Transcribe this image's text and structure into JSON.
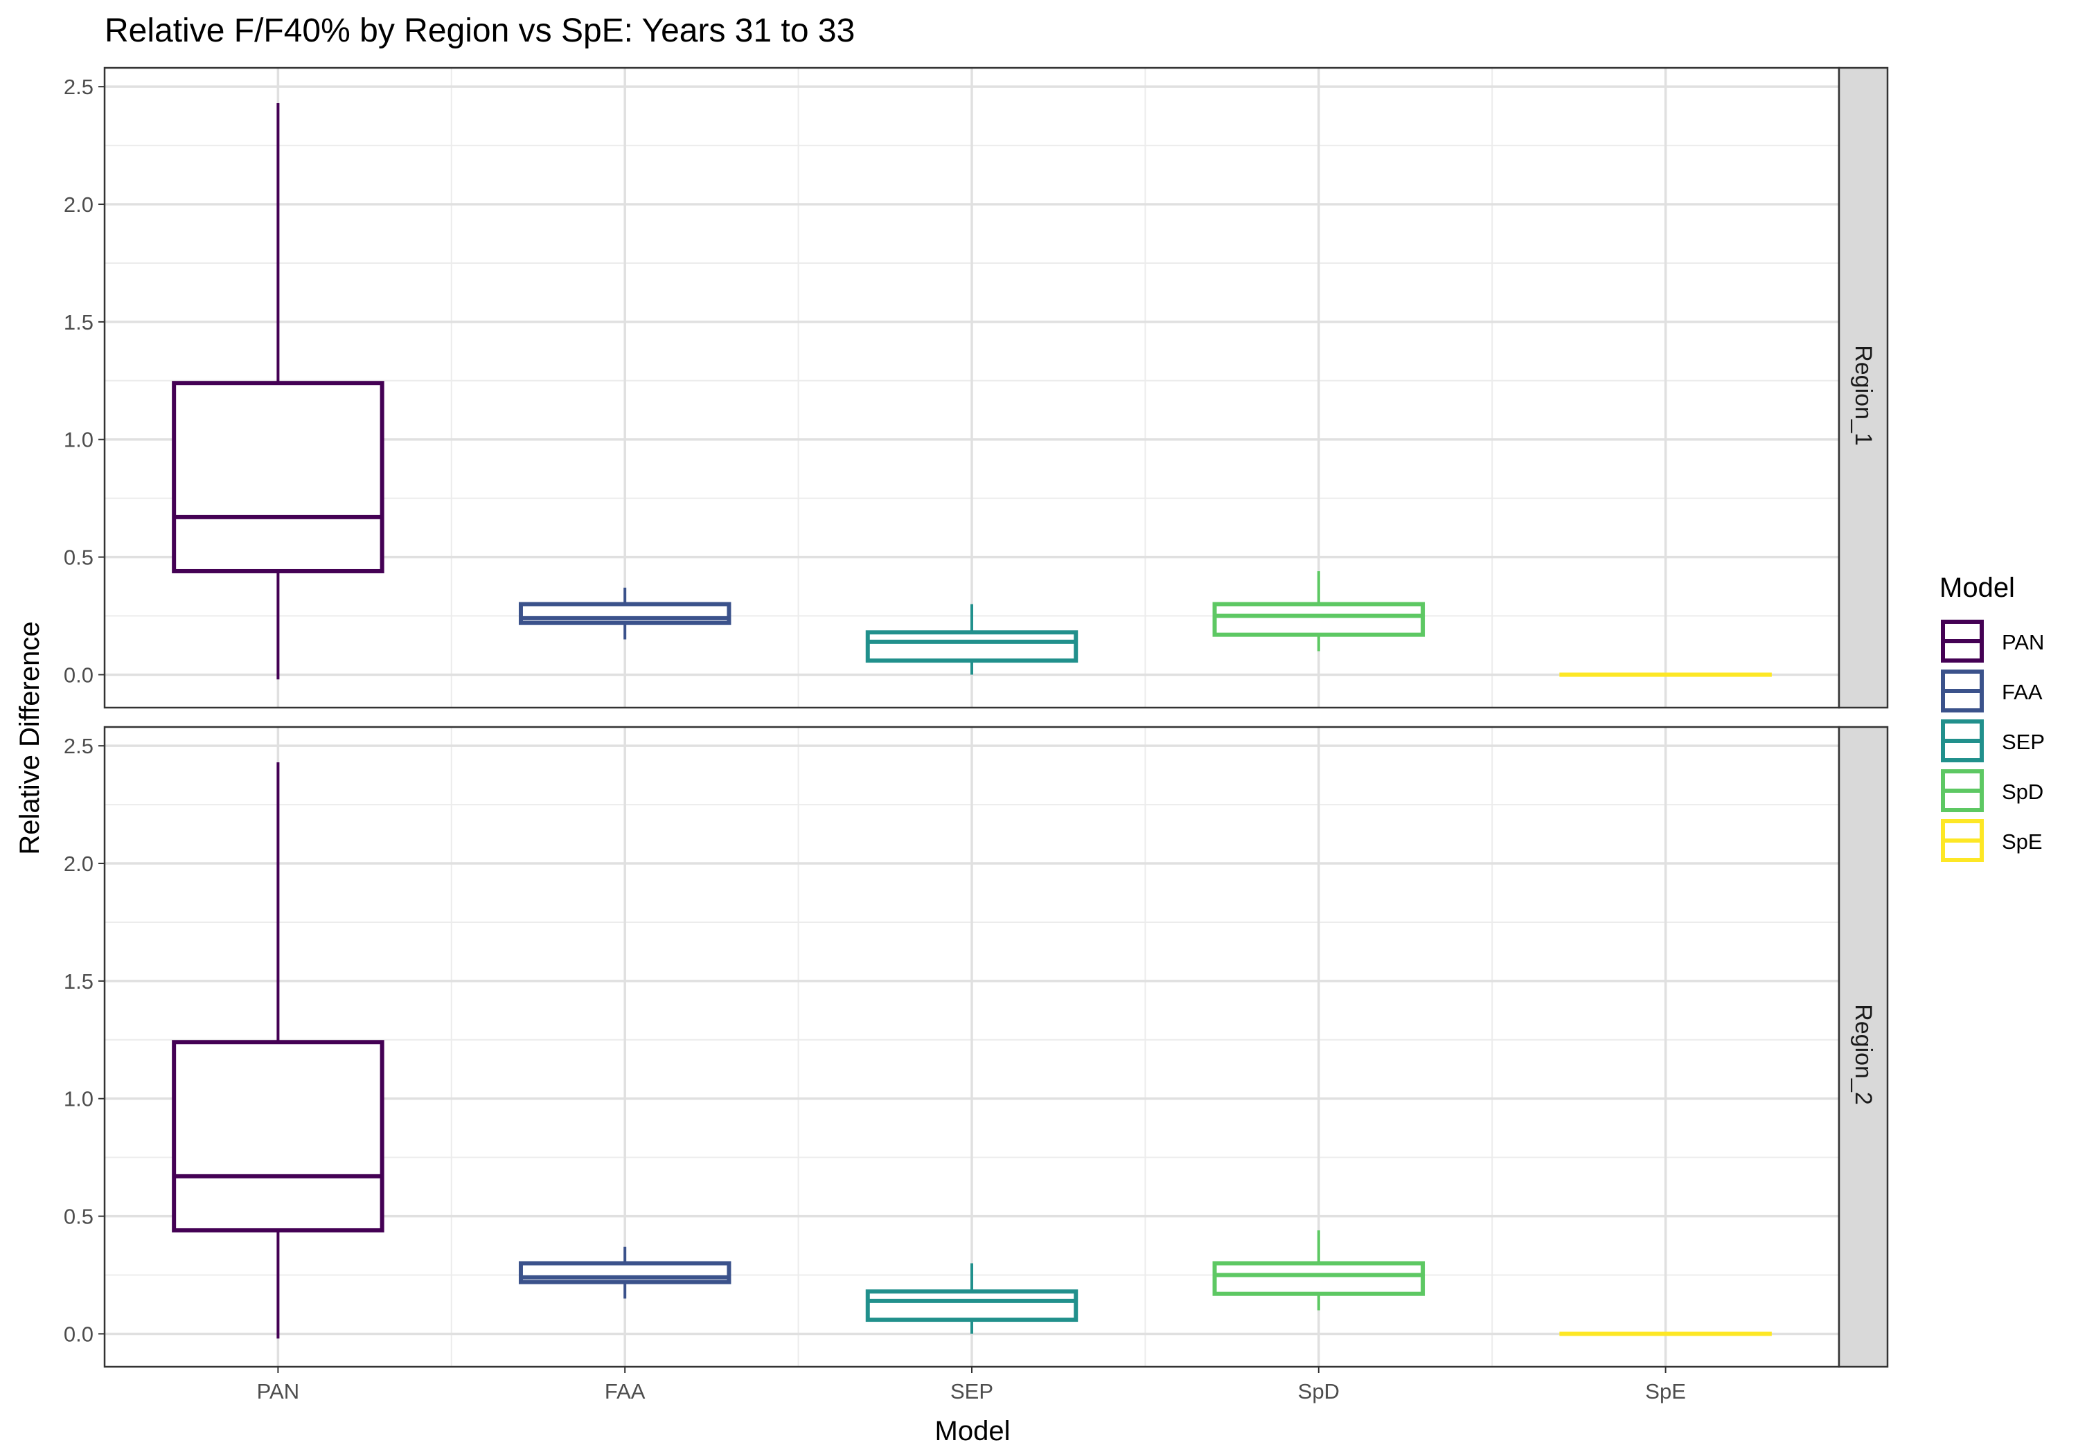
{
  "chart_data": {
    "type": "boxplot",
    "title": "Relative F/F40% by Region vs SpE: Years 31 to 33",
    "xlabel": "Model",
    "ylabel": "Relative Difference",
    "categories": [
      "PAN",
      "FAA",
      "SEP",
      "SpD",
      "SpE"
    ],
    "ylim": [
      -0.14,
      2.58
    ],
    "yticks": [
      "0.0",
      "0.5",
      "1.0",
      "1.5",
      "2.0",
      "2.5"
    ],
    "ytick_values": [
      0,
      0.5,
      1.0,
      1.5,
      2.0,
      2.5
    ],
    "grid": true,
    "legend": {
      "title": "Model",
      "position": "right",
      "entries": [
        "PAN",
        "FAA",
        "SEP",
        "SpD",
        "SpE"
      ]
    },
    "colors": {
      "PAN": "#440154",
      "FAA": "#3b528b",
      "SEP": "#21908c",
      "SpD": "#5dc863",
      "SpE": "#fde725"
    },
    "panels": [
      {
        "name": "Region_1",
        "boxes": [
          {
            "category": "PAN",
            "min": -0.02,
            "q1": 0.44,
            "median": 0.67,
            "q3": 1.24,
            "max": 2.43
          },
          {
            "category": "FAA",
            "min": 0.15,
            "q1": 0.22,
            "median": 0.24,
            "q3": 0.3,
            "max": 0.37
          },
          {
            "category": "SEP",
            "min": 0.0,
            "q1": 0.06,
            "median": 0.14,
            "q3": 0.18,
            "max": 0.3
          },
          {
            "category": "SpD",
            "min": 0.1,
            "q1": 0.17,
            "median": 0.25,
            "q3": 0.3,
            "max": 0.44
          },
          {
            "category": "SpE",
            "min": 0.0,
            "q1": 0.0,
            "median": 0.0,
            "q3": 0.0,
            "max": 0.0
          }
        ]
      },
      {
        "name": "Region_2",
        "boxes": [
          {
            "category": "PAN",
            "min": -0.02,
            "q1": 0.44,
            "median": 0.67,
            "q3": 1.24,
            "max": 2.43
          },
          {
            "category": "FAA",
            "min": 0.15,
            "q1": 0.22,
            "median": 0.24,
            "q3": 0.3,
            "max": 0.37
          },
          {
            "category": "SEP",
            "min": 0.0,
            "q1": 0.06,
            "median": 0.14,
            "q3": 0.18,
            "max": 0.3
          },
          {
            "category": "SpD",
            "min": 0.1,
            "q1": 0.17,
            "median": 0.25,
            "q3": 0.3,
            "max": 0.44
          },
          {
            "category": "SpE",
            "min": 0.0,
            "q1": 0.0,
            "median": 0.0,
            "q3": 0.0,
            "max": 0.0
          }
        ]
      }
    ]
  }
}
